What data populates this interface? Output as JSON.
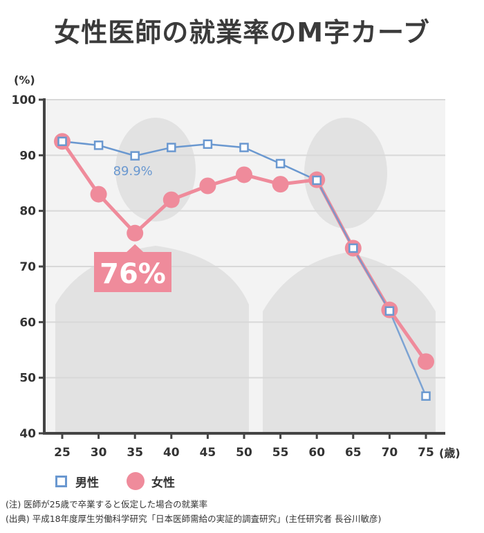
{
  "title": "女性医師の就業率のM字カーブ",
  "chart_data": {
    "type": "line",
    "title": "女性医師の就業率のM字カーブ",
    "y_unit": "(%)",
    "x_unit": "(歳)",
    "ylim": [
      40,
      100
    ],
    "yticks": [
      40,
      50,
      60,
      70,
      80,
      90,
      100
    ],
    "categories": [
      "25",
      "30",
      "35",
      "40",
      "45",
      "50",
      "55",
      "60",
      "65",
      "70",
      "75"
    ],
    "grid": true,
    "series": [
      {
        "name": "男性",
        "color": "#6a98d0",
        "marker": "square",
        "values": [
          92.5,
          91.8,
          89.9,
          91.4,
          92.0,
          91.4,
          88.5,
          85.5,
          73.3,
          62.0,
          46.7
        ]
      },
      {
        "name": "女性",
        "color": "#ef8b9b",
        "marker": "circle",
        "values": [
          92.5,
          83.0,
          76.0,
          82.0,
          84.5,
          86.5,
          84.8,
          85.6,
          73.3,
          62.2,
          52.9
        ]
      }
    ],
    "annotations": [
      {
        "text": "89.9%",
        "series": "男性",
        "category": "35",
        "color": "#6a98d0"
      },
      {
        "text": "76%",
        "series": "女性",
        "category": "35",
        "color": "#ffffff",
        "background": "#ef8b9b"
      }
    ],
    "legend_position": "bottom-left"
  },
  "legend": {
    "male": "男性",
    "female": "女性"
  },
  "notes": {
    "note1": "(注) 医師が25歳で卒業すると仮定した場合の就業率",
    "note2": "(出典) 平成18年度厚生労働科学研究「日本医師需給の実証的調査研究」(主任研究者 長谷川敏彦)"
  }
}
